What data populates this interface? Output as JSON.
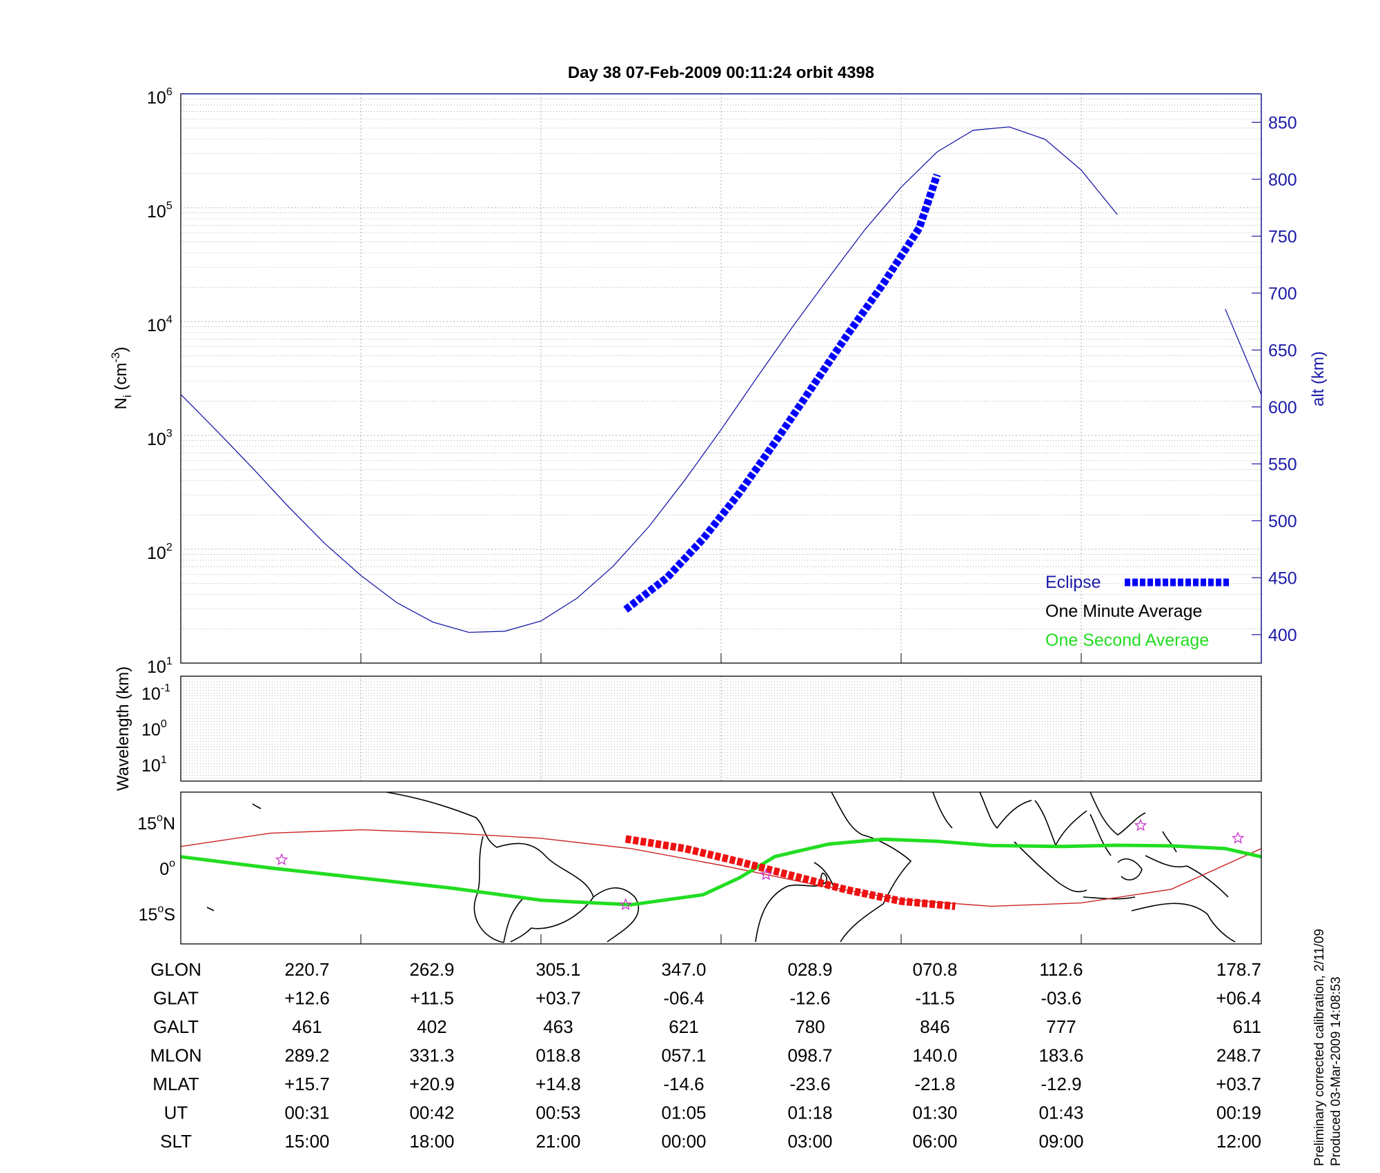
{
  "title": "Day 38  07-Feb-2009 00:11:24   orbit 4398",
  "colors": {
    "altitude": "#1a1aa8",
    "eclipse": "#0000ff",
    "one_second": "#22dd22",
    "track": "#cc2222",
    "eclipse_track": "#ee1111",
    "stars": "#cc33cc",
    "grid": "#999999"
  },
  "chart_data": [
    {
      "type": "line",
      "panel": "density",
      "ylabel_left": "N",
      "ylabel_left_sub": "i",
      "ylabel_left_unit": "(cm",
      "ylabel_left_unit_sup": "-3",
      "ylabel_left_unit_close": ")",
      "ylabel_right": "alt (km)",
      "left_scale": "log",
      "left_ylim": [
        10,
        1000000
      ],
      "left_tick_base": "10",
      "left_tick_exponents": [
        "1",
        "2",
        "3",
        "4",
        "5",
        "6"
      ],
      "right_ylim": [
        375,
        875
      ],
      "right_ticks": [
        "400",
        "450",
        "500",
        "550",
        "600",
        "650",
        "700",
        "750",
        "800",
        "850"
      ],
      "xlim": [
        0,
        6
      ],
      "grid": true,
      "altitude_series": {
        "x": [
          0,
          0.2,
          0.4,
          0.6,
          0.8,
          1.0,
          1.2,
          1.4,
          1.6,
          1.8,
          2.0,
          2.2,
          2.4,
          2.6,
          2.8,
          3.0,
          3.2,
          3.4,
          3.6,
          3.8,
          4.0,
          4.2,
          4.4,
          4.6,
          4.8,
          5.0,
          5.2
        ],
        "y": [
          611,
          579,
          546,
          512,
          480,
          452,
          428,
          411,
          402,
          403,
          412,
          432,
          460,
          495,
          536,
          580,
          626,
          671,
          714,
          756,
          793,
          824,
          843,
          846,
          835,
          808,
          769
        ]
      },
      "altitude_series_2": {
        "x": [
          5.8,
          6.0
        ],
        "y": [
          686,
          611
        ]
      },
      "eclipse_series": {
        "x": [
          2.47,
          2.7,
          2.9,
          3.1,
          3.3,
          3.5,
          3.7,
          3.9,
          4.1,
          4.2
        ],
        "y": [
          422,
          450,
          484,
          524,
          569,
          616,
          663,
          708,
          757,
          804
        ]
      },
      "legend": [
        {
          "label": "Eclipse",
          "style": "eclipse"
        },
        {
          "label": "One Minute Average",
          "style": "black"
        },
        {
          "label": "One Second Average",
          "style": "green"
        }
      ],
      "legend_position": "bottom-right"
    },
    {
      "type": "heatmap",
      "panel": "wavelength",
      "ylabel": "Wavelength (km)",
      "tick_base": "10",
      "tick_exponents": [
        "-1",
        "0",
        "1"
      ],
      "grid": true
    },
    {
      "type": "line",
      "panel": "map",
      "ylabels": [
        {
          "text": "15",
          "sup": "o",
          "suffix": "N"
        },
        {
          "text": "0",
          "sup": "o",
          "suffix": ""
        },
        {
          "text": "15",
          "sup": "o",
          "suffix": "S"
        }
      ],
      "ylim": [
        -25,
        25
      ],
      "one_second_track": {
        "x": [
          0,
          0.5,
          1.0,
          1.5,
          2.0,
          2.5,
          2.9,
          3.1,
          3.3,
          3.6,
          3.9,
          4.2,
          4.5,
          4.9,
          5.2,
          5.5,
          5.8,
          6.0
        ],
        "y": [
          3.7,
          0,
          -3.3,
          -6.6,
          -10.6,
          -12.1,
          -8.8,
          -3.3,
          3.8,
          7.9,
          9.5,
          8.8,
          7.4,
          7.1,
          7.5,
          7.3,
          6.4,
          3.7
        ]
      },
      "orbit_track": {
        "x": [
          0,
          0.5,
          1.0,
          1.5,
          2.0,
          2.5,
          3.0,
          3.5,
          4.0,
          4.5,
          5.0,
          5.5,
          6.0
        ],
        "y": [
          7.1,
          11.5,
          12.6,
          11.5,
          9.8,
          6.4,
          0.9,
          -5.2,
          -10.4,
          -12.6,
          -11.5,
          -7.0,
          6.4
        ]
      },
      "eclipse_track": {
        "x": [
          2.47,
          2.8,
          3.1,
          3.4,
          3.7,
          4.0,
          4.3
        ],
        "y": [
          9.6,
          6.4,
          2.1,
          -2.6,
          -7.2,
          -10.9,
          -12.6
        ]
      },
      "stars": {
        "x": [
          0.56,
          2.47,
          3.25,
          5.33,
          5.87
        ],
        "y": [
          2.7,
          -12.1,
          -2.2,
          14.0,
          9.8
        ]
      }
    }
  ],
  "table": {
    "rows": [
      {
        "label": "GLON",
        "values": [
          "220.7",
          "262.9",
          "305.1",
          "347.0",
          "028.9",
          "070.8",
          "112.6",
          "178.7"
        ]
      },
      {
        "label": "GLAT",
        "values": [
          "+12.6",
          "+11.5",
          "+03.7",
          "-06.4",
          "-12.6",
          "-11.5",
          "-03.6",
          "+06.4"
        ]
      },
      {
        "label": "GALT",
        "values": [
          "461",
          "402",
          "463",
          "621",
          "780",
          "846",
          "777",
          "611"
        ]
      },
      {
        "label": "MLON",
        "values": [
          "289.2",
          "331.3",
          "018.8",
          "057.1",
          "098.7",
          "140.0",
          "183.6",
          "248.7"
        ]
      },
      {
        "label": "MLAT",
        "values": [
          "+15.7",
          "+20.9",
          "+14.8",
          "-14.6",
          "-23.6",
          "-21.8",
          "-12.9",
          "+03.7"
        ]
      },
      {
        "label": "UT",
        "values": [
          "00:31",
          "00:42",
          "00:53",
          "01:05",
          "01:18",
          "01:30",
          "01:43",
          "00:19"
        ]
      },
      {
        "label": "SLT",
        "values": [
          "15:00",
          "18:00",
          "21:00",
          "00:00",
          "03:00",
          "06:00",
          "09:00",
          "12:00"
        ]
      }
    ]
  },
  "footnote_1": "Preliminary corrected calibration, 2/11/09",
  "footnote_2": "Produced 03-Mar-2009 14:08:53"
}
